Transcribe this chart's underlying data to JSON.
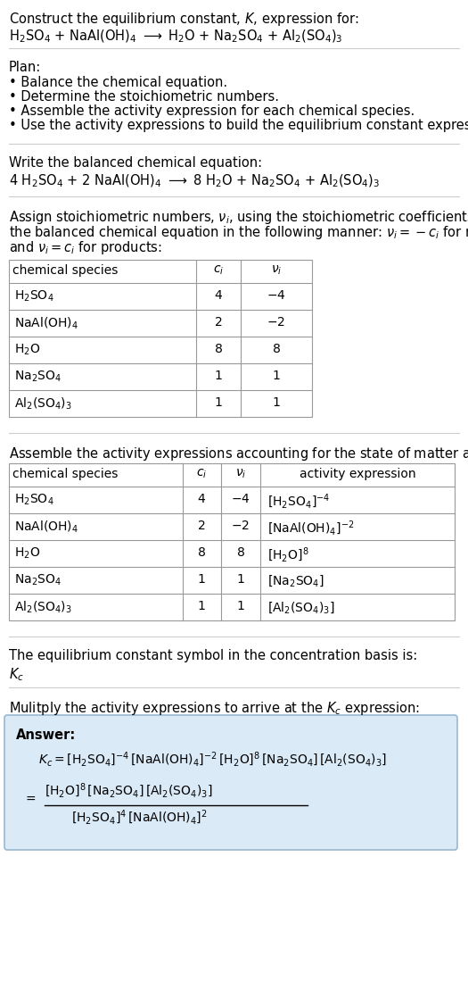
{
  "title_line1": "Construct the equilibrium constant, $K$, expression for:",
  "title_line2": "$\\mathrm{H_2SO_4}$ + NaAl(OH)$_4$ $\\longrightarrow$ $\\mathrm{H_2O}$ + $\\mathrm{Na_2SO_4}$ + $\\mathrm{Al_2(SO_4)_3}$",
  "plan_header": "Plan:",
  "plan_items": [
    "• Balance the chemical equation.",
    "• Determine the stoichiometric numbers.",
    "• Assemble the activity expression for each chemical species.",
    "• Use the activity expressions to build the equilibrium constant expression."
  ],
  "balanced_eq_header": "Write the balanced chemical equation:",
  "balanced_eq": "4 $\\mathrm{H_2SO_4}$ + 2 NaAl(OH)$_4$ $\\longrightarrow$ 8 $\\mathrm{H_2O}$ + $\\mathrm{Na_2SO_4}$ + $\\mathrm{Al_2(SO_4)_3}$",
  "stoich_header_lines": [
    "Assign stoichiometric numbers, $\\nu_i$, using the stoichiometric coefficients, $c_i$, from",
    "the balanced chemical equation in the following manner: $\\nu_i = -c_i$ for reactants",
    "and $\\nu_i = c_i$ for products:"
  ],
  "table1_headers": [
    "chemical species",
    "$c_i$",
    "$\\nu_i$"
  ],
  "table1_rows": [
    [
      "$\\mathrm{H_2SO_4}$",
      "4",
      "$-4$"
    ],
    [
      "$\\mathrm{NaAl(OH)_4}$",
      "2",
      "$-2$"
    ],
    [
      "$\\mathrm{H_2O}$",
      "8",
      "8"
    ],
    [
      "$\\mathrm{Na_2SO_4}$",
      "1",
      "1"
    ],
    [
      "$\\mathrm{Al_2(SO_4)_3}$",
      "1",
      "1"
    ]
  ],
  "activity_header": "Assemble the activity expressions accounting for the state of matter and $\\nu_i$:",
  "table2_headers": [
    "chemical species",
    "$c_i$",
    "$\\nu_i$",
    "activity expression"
  ],
  "table2_rows": [
    [
      "$\\mathrm{H_2SO_4}$",
      "4",
      "$-4$",
      "$[\\mathrm{H_2SO_4}]^{-4}$"
    ],
    [
      "$\\mathrm{NaAl(OH)_4}$",
      "2",
      "$-2$",
      "$[\\mathrm{NaAl(OH)_4}]^{-2}$"
    ],
    [
      "$\\mathrm{H_2O}$",
      "8",
      "8",
      "$[\\mathrm{H_2O}]^{8}$"
    ],
    [
      "$\\mathrm{Na_2SO_4}$",
      "1",
      "1",
      "$[\\mathrm{Na_2SO_4}]$"
    ],
    [
      "$\\mathrm{Al_2(SO_4)_3}$",
      "1",
      "1",
      "$[\\mathrm{Al_2(SO_4)_3}]$"
    ]
  ],
  "kc_header": "The equilibrium constant symbol in the concentration basis is:",
  "kc_symbol": "$K_c$",
  "multiply_header": "Mulitply the activity expressions to arrive at the $K_c$ expression:",
  "answer_label": "Answer:",
  "answer_line1": "$K_c = [\\mathrm{H_2SO_4}]^{-4}\\,[\\mathrm{NaAl(OH)_4}]^{-2}\\,[\\mathrm{H_2O}]^{8}\\,[\\mathrm{Na_2SO_4}]\\,[\\mathrm{Al_2(SO_4)_3}]$",
  "answer_numerator": "$[\\mathrm{H_2O}]^{8}\\,[\\mathrm{Na_2SO_4}]\\,[\\mathrm{Al_2(SO_4)_3}]$",
  "answer_denominator": "$[\\mathrm{H_2SO_4}]^{4}\\,[\\mathrm{NaAl(OH)_4}]^{2}$",
  "bg_color": "#ffffff",
  "table_border_color": "#999999",
  "answer_box_facecolor": "#dbeaf7",
  "answer_box_edgecolor": "#9ab8d0",
  "text_color": "#000000",
  "fs": 10.5,
  "fs_sm": 10.0
}
